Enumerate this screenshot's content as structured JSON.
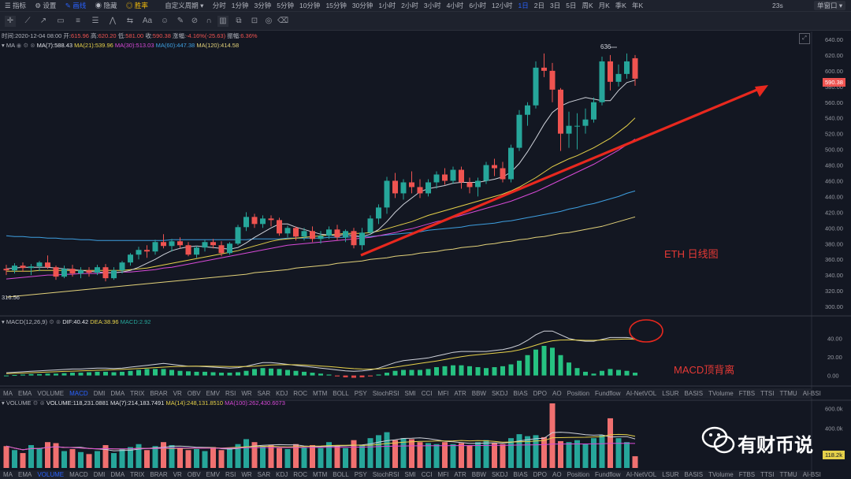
{
  "toolbar": {
    "items": [
      "指标",
      "设置",
      "画线",
      "隐藏",
      "胜率",
      "自定义周期"
    ],
    "periods": [
      "分时",
      "1分钟",
      "3分钟",
      "5分钟",
      "10分钟",
      "15分钟",
      "30分钟",
      "1小时",
      "2小时",
      "3小时",
      "4小时",
      "6小时",
      "12小时",
      "1日",
      "2日",
      "3日",
      "5日",
      "周K",
      "月K",
      "季K",
      "年K"
    ],
    "active_period": "1日",
    "right_time": "23s",
    "right_mode": "单窗口"
  },
  "colors": {
    "up": "#26a69a",
    "down": "#ef5350",
    "bg": "#131722",
    "accent": "#2962ff"
  },
  "ohlc": {
    "time_label": "时间:",
    "time": "2020-12-04 08:00",
    "open_label": "开:",
    "open": "615.96",
    "high_label": "高:",
    "high": "620.20",
    "low_label": "低:",
    "low": "581.00",
    "close_label": "收:",
    "close": "590.38",
    "change_label": "涨幅:",
    "change": "-4.16%(-25.63)",
    "amp_label": "振幅:",
    "amp": "6.36%"
  },
  "ma_legend": {
    "name": "MA",
    "ma7": "MA(7):588.43",
    "ma21": "MA(21):539.96",
    "ma30": "MA(30):513.03",
    "ma60": "MA(60):447.38",
    "ma120": "MA(120):414.58"
  },
  "macd_legend": {
    "name": "MACD(12,26,9)",
    "dif": "DIF:40.42",
    "dea": "DEA:38.96",
    "macd": "MACD:2.92"
  },
  "volume_legend": {
    "name": "VOLUME",
    "vol": "VOLUME:118,231.0881",
    "ma7": "MA(7):214,183.7491",
    "ma14": "MA(14):248,131.8510",
    "ma100": "MA(100):262,430.6073"
  },
  "indicator_tabs": [
    "MA",
    "EMA",
    "VOLUME",
    "MACD",
    "DMI",
    "DMA",
    "TRIX",
    "BRAR",
    "VR",
    "OBV",
    "EMV",
    "RSI",
    "WR",
    "SAR",
    "KDJ",
    "ROC",
    "MTM",
    "BOLL",
    "PSY",
    "StochRSI",
    "SMI",
    "CCI",
    "MFI",
    "ATR",
    "BBW",
    "SKDJ",
    "BIAS",
    "DPO",
    "AO",
    "Position",
    "Fundflow",
    "AI-NetVOL",
    "LSUR",
    "BASIS",
    "TVolume",
    "FTBS",
    "TTSI",
    "TTMU",
    "AI-BSI"
  ],
  "annotations": {
    "main": "ETH  日线图",
    "macd": "MACD顶背离",
    "high_marker": "636",
    "low_marker": "316.56",
    "watermark": "有财币说"
  },
  "chart_data": [
    {
      "type": "candlestick",
      "title": "ETH  日线图",
      "ylim": [
        290,
        645
      ],
      "yticks": [
        640,
        620,
        600,
        580,
        560,
        540,
        520,
        500,
        480,
        460,
        440,
        420,
        400,
        380,
        360,
        340,
        320,
        300
      ],
      "current_price": "590.38",
      "candles": [
        [
          348,
          353,
          340,
          346
        ],
        [
          346,
          355,
          342,
          352
        ],
        [
          352,
          356,
          344,
          349
        ],
        [
          349,
          354,
          340,
          351
        ],
        [
          351,
          358,
          345,
          356
        ],
        [
          356,
          365,
          348,
          350
        ],
        [
          350,
          352,
          334,
          338
        ],
        [
          338,
          352,
          336,
          348
        ],
        [
          348,
          353,
          338,
          342
        ],
        [
          342,
          350,
          336,
          346
        ],
        [
          346,
          350,
          338,
          343
        ],
        [
          343,
          353,
          340,
          350
        ],
        [
          350,
          354,
          332,
          336
        ],
        [
          336,
          350,
          334,
          346
        ],
        [
          346,
          358,
          342,
          356
        ],
        [
          356,
          368,
          352,
          366
        ],
        [
          366,
          376,
          360,
          372
        ],
        [
          372,
          378,
          362,
          370
        ],
        [
          370,
          385,
          366,
          382
        ],
        [
          382,
          392,
          374,
          377
        ],
        [
          377,
          386,
          370,
          383
        ],
        [
          383,
          388,
          374,
          378
        ],
        [
          378,
          382,
          364,
          366
        ],
        [
          366,
          377,
          362,
          375
        ],
        [
          375,
          385,
          370,
          382
        ],
        [
          382,
          386,
          374,
          378
        ],
        [
          378,
          383,
          364,
          368
        ],
        [
          368,
          382,
          366,
          380
        ],
        [
          380,
          404,
          378,
          401
        ],
        [
          401,
          420,
          396,
          414
        ],
        [
          414,
          418,
          400,
          405
        ],
        [
          405,
          416,
          400,
          412
        ],
        [
          412,
          416,
          402,
          410
        ],
        [
          410,
          413,
          390,
          393
        ],
        [
          393,
          403,
          388,
          400
        ],
        [
          400,
          402,
          384,
          389
        ],
        [
          389,
          400,
          384,
          396
        ],
        [
          396,
          402,
          382,
          386
        ],
        [
          386,
          396,
          380,
          390
        ],
        [
          390,
          402,
          386,
          398
        ],
        [
          398,
          404,
          384,
          388
        ],
        [
          388,
          398,
          382,
          396
        ],
        [
          396,
          400,
          374,
          378
        ],
        [
          378,
          400,
          372,
          394
        ],
        [
          394,
          416,
          392,
          412
        ],
        [
          412,
          430,
          405,
          426
        ],
        [
          426,
          465,
          418,
          460
        ],
        [
          460,
          470,
          438,
          444
        ],
        [
          444,
          462,
          436,
          458
        ],
        [
          458,
          472,
          444,
          452
        ],
        [
          452,
          462,
          438,
          444
        ],
        [
          444,
          462,
          440,
          458
        ],
        [
          458,
          472,
          450,
          468
        ],
        [
          468,
          476,
          455,
          460
        ],
        [
          460,
          478,
          456,
          474
        ],
        [
          474,
          478,
          450,
          458
        ],
        [
          458,
          464,
          444,
          452
        ],
        [
          452,
          464,
          440,
          460
        ],
        [
          460,
          484,
          456,
          480
        ],
        [
          480,
          488,
          466,
          476
        ],
        [
          476,
          484,
          458,
          462
        ],
        [
          462,
          506,
          458,
          502
        ],
        [
          502,
          550,
          498,
          544
        ],
        [
          544,
          560,
          530,
          556
        ],
        [
          556,
          612,
          552,
          604
        ],
        [
          604,
          622,
          592,
          600
        ],
        [
          600,
          610,
          560,
          576
        ],
        [
          576,
          578,
          498,
          520
        ],
        [
          520,
          548,
          502,
          530
        ],
        [
          530,
          546,
          500,
          530
        ],
        [
          530,
          552,
          520,
          538
        ],
        [
          538,
          566,
          534,
          560
        ],
        [
          560,
          618,
          556,
          612
        ],
        [
          612,
          620,
          575,
          586
        ],
        [
          586,
          608,
          580,
          596
        ],
        [
          596,
          622,
          590,
          612
        ],
        [
          616,
          620,
          581,
          590
        ]
      ],
      "ma7": [
        348,
        349,
        350,
        350,
        350,
        350,
        349,
        348,
        347,
        346,
        345,
        344,
        343,
        343,
        344,
        346,
        350,
        355,
        360,
        366,
        371,
        374,
        376,
        377,
        376,
        375,
        374,
        373,
        375,
        381,
        388,
        394,
        400,
        405,
        405,
        401,
        398,
        395,
        392,
        391,
        390,
        392,
        390,
        389,
        392,
        398,
        408,
        420,
        430,
        438,
        446,
        450,
        452,
        454,
        457,
        458,
        458,
        458,
        460,
        462,
        465,
        471,
        482,
        497,
        514,
        532,
        547,
        555,
        560,
        563,
        566,
        564,
        562,
        562,
        575,
        585,
        588
      ],
      "ma21": [
        345,
        345,
        345,
        345,
        346,
        346,
        346,
        346,
        346,
        346,
        346,
        346,
        346,
        346,
        346,
        347,
        348,
        349,
        351,
        353,
        355,
        357,
        359,
        361,
        363,
        365,
        367,
        369,
        371,
        374,
        377,
        380,
        383,
        385,
        386,
        387,
        388,
        389,
        390,
        391,
        392,
        393,
        393,
        393,
        394,
        396,
        399,
        402,
        405,
        408,
        412,
        416,
        419,
        422,
        425,
        428,
        431,
        434,
        437,
        440,
        443,
        447,
        452,
        458,
        464,
        471,
        478,
        483,
        488,
        492,
        497,
        502,
        508,
        514,
        522,
        530,
        540
      ],
      "ma30": [
        335,
        336,
        337,
        338,
        339,
        340,
        340,
        341,
        341,
        342,
        342,
        342,
        343,
        343,
        344,
        344,
        345,
        346,
        347,
        349,
        350,
        352,
        354,
        356,
        358,
        360,
        362,
        364,
        366,
        368,
        370,
        372,
        374,
        376,
        378,
        379,
        380,
        381,
        382,
        383,
        384,
        385,
        386,
        387,
        388,
        390,
        392,
        394,
        397,
        399,
        402,
        405,
        408,
        410,
        413,
        416,
        419,
        422,
        425,
        428,
        431,
        434,
        438,
        442,
        446,
        451,
        456,
        461,
        466,
        471,
        476,
        481,
        487,
        493,
        499,
        506,
        513
      ],
      "ma60": [
        390,
        389,
        389,
        388,
        388,
        387,
        387,
        386,
        386,
        385,
        385,
        384,
        384,
        384,
        384,
        384,
        384,
        384,
        384,
        384,
        385,
        385,
        385,
        385,
        385,
        385,
        385,
        385,
        385,
        385,
        386,
        386,
        386,
        386,
        387,
        387,
        387,
        387,
        387,
        388,
        388,
        388,
        389,
        389,
        389,
        390,
        391,
        392,
        393,
        394,
        395,
        397,
        398,
        399,
        400,
        401,
        403,
        404,
        405,
        406,
        408,
        409,
        411,
        413,
        415,
        417,
        419,
        421,
        424,
        426,
        429,
        431,
        434,
        437,
        440,
        444,
        447
      ],
      "ma120": [
        312,
        313,
        314,
        315,
        316,
        317,
        318,
        319,
        320,
        321,
        322,
        323,
        324,
        325,
        326,
        327,
        328,
        329,
        330,
        331,
        332,
        333,
        334,
        335,
        336,
        337,
        338,
        339,
        340,
        341,
        343,
        344,
        345,
        346,
        347,
        349,
        350,
        351,
        352,
        353,
        355,
        356,
        357,
        358,
        360,
        361,
        362,
        364,
        365,
        366,
        368,
        369,
        370,
        372,
        373,
        375,
        376,
        377,
        379,
        380,
        382,
        383,
        385,
        386,
        388,
        389,
        391,
        393,
        394,
        396,
        398,
        400,
        402,
        405,
        408,
        411,
        414
      ]
    },
    {
      "type": "bar",
      "title": "MACD(12,26,9)",
      "ylim": [
        -8,
        55
      ],
      "yticks": [
        40,
        20,
        0
      ],
      "macd": [
        0,
        0.5,
        1,
        1.5,
        1.5,
        2,
        2,
        2.5,
        3,
        3,
        3.5,
        4,
        4,
        3.5,
        4,
        5,
        6,
        7,
        7,
        7,
        6,
        5,
        4.5,
        4,
        4,
        3.5,
        3,
        3,
        3.5,
        5,
        7,
        8,
        7.5,
        7,
        6,
        5,
        4,
        3,
        2,
        1,
        -1,
        -2,
        -2.5,
        -2,
        -1,
        1,
        3,
        5,
        6,
        6,
        6,
        7,
        9,
        10,
        11,
        11,
        10,
        9,
        8,
        9,
        10,
        12,
        16,
        22,
        28,
        32,
        30,
        22,
        14,
        8,
        4,
        2,
        5,
        7,
        6,
        5,
        3
      ],
      "dif": [
        3,
        3.5,
        4,
        4.5,
        5,
        5.5,
        6,
        6.5,
        7,
        7,
        7.5,
        8,
        8,
        7.5,
        8,
        9,
        10,
        11,
        12,
        13,
        12,
        11,
        10,
        10,
        9.5,
        9,
        8.5,
        8,
        8.5,
        10,
        12,
        14,
        14,
        13,
        12,
        11,
        10,
        9,
        8,
        7,
        6,
        5,
        4.5,
        5,
        6,
        8,
        11,
        14,
        16,
        17,
        18,
        19,
        21,
        23,
        25,
        26,
        26,
        26,
        26,
        27,
        28,
        30,
        33,
        38,
        44,
        48,
        48,
        44,
        40,
        38,
        37,
        37,
        39,
        41,
        41,
        41,
        40
      ],
      "dea": [
        2,
        2.3,
        2.6,
        3,
        3.4,
        3.7,
        4,
        4.4,
        4.7,
        5,
        5.3,
        5.6,
        6,
        6.3,
        6.6,
        7,
        7.5,
        8,
        8.5,
        9,
        9.5,
        9.8,
        10,
        10.1,
        10.1,
        10,
        9.9,
        9.7,
        9.6,
        9.6,
        10,
        10.7,
        11.3,
        11.6,
        11.7,
        11.6,
        11.3,
        10.8,
        10.2,
        9.6,
        8.9,
        8.1,
        7.4,
        7,
        6.9,
        7.1,
        7.9,
        9,
        10.4,
        11.7,
        13,
        14.3,
        15.7,
        17.2,
        18.8,
        20.3,
        21.5,
        22.4,
        23.3,
        24.1,
        25,
        26,
        27.7,
        30,
        32.8,
        35.5,
        37.5,
        38.3,
        38.4,
        38.3,
        38,
        38,
        38.3,
        38.8,
        39.2,
        39.5,
        38.96
      ]
    },
    {
      "type": "bar",
      "title": "VOLUME",
      "ylim": [
        0,
        650
      ],
      "yticks": [
        600,
        400
      ],
      "ytick_labels": [
        "600.0k",
        "400.0k"
      ],
      "current_value": "118.2k",
      "volume": [
        220,
        180,
        150,
        230,
        200,
        260,
        250,
        170,
        190,
        160,
        140,
        170,
        230,
        150,
        190,
        210,
        240,
        180,
        220,
        260,
        230,
        200,
        180,
        190,
        170,
        210,
        180,
        200,
        240,
        290,
        260,
        220,
        230,
        200,
        190,
        240,
        210,
        230,
        200,
        260,
        220,
        200,
        280,
        230,
        300,
        330,
        360,
        280,
        300,
        290,
        260,
        250,
        240,
        260,
        240,
        250,
        230,
        260,
        280,
        250,
        240,
        300,
        340,
        320,
        330,
        310,
        650,
        270,
        260,
        280,
        240,
        300,
        330,
        500,
        300,
        260,
        118
      ]
    }
  ]
}
